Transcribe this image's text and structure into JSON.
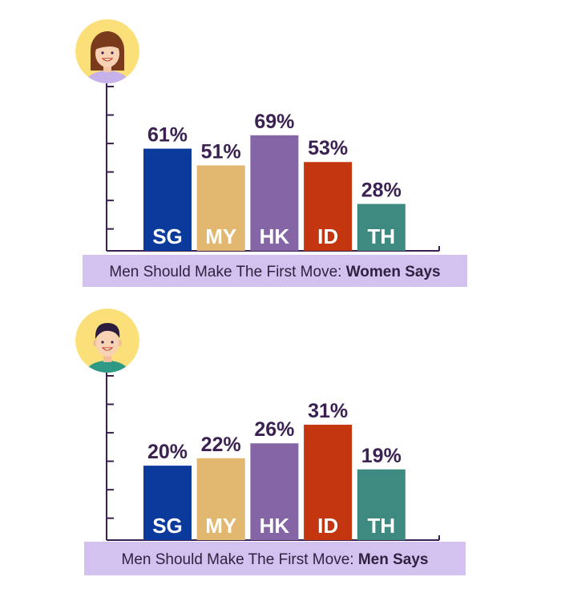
{
  "colors": {
    "SG": "#0a3a9c",
    "MY": "#e2b76f",
    "HK": "#8565a6",
    "ID": "#c4360f",
    "TH": "#3e8a80",
    "axis": "#3b2151",
    "caption_bg": "#d3c2ef",
    "avatar_bg": "#fbe079"
  },
  "chart_data": [
    {
      "type": "bar",
      "avatar": "woman-avatar-icon",
      "categories": [
        "SG",
        "MY",
        "HK",
        "ID",
        "TH"
      ],
      "values": [
        61,
        51,
        69,
        53,
        28
      ],
      "value_labels": [
        "61%",
        "51%",
        "69%",
        "53%",
        "28%"
      ],
      "ylim": [
        0,
        100
      ],
      "grid": false,
      "caption": {
        "prefix": "Men Should Make The First Move: ",
        "bold": "Women Says"
      }
    },
    {
      "type": "bar",
      "avatar": "man-avatar-icon",
      "categories": [
        "SG",
        "MY",
        "HK",
        "ID",
        "TH"
      ],
      "values": [
        20,
        22,
        26,
        31,
        19
      ],
      "value_labels": [
        "20%",
        "22%",
        "26%",
        "31%",
        "19%"
      ],
      "ylim": [
        0,
        45
      ],
      "grid": false,
      "caption": {
        "prefix": "Men Should Make The First Move: ",
        "bold": "Men Says"
      }
    }
  ]
}
